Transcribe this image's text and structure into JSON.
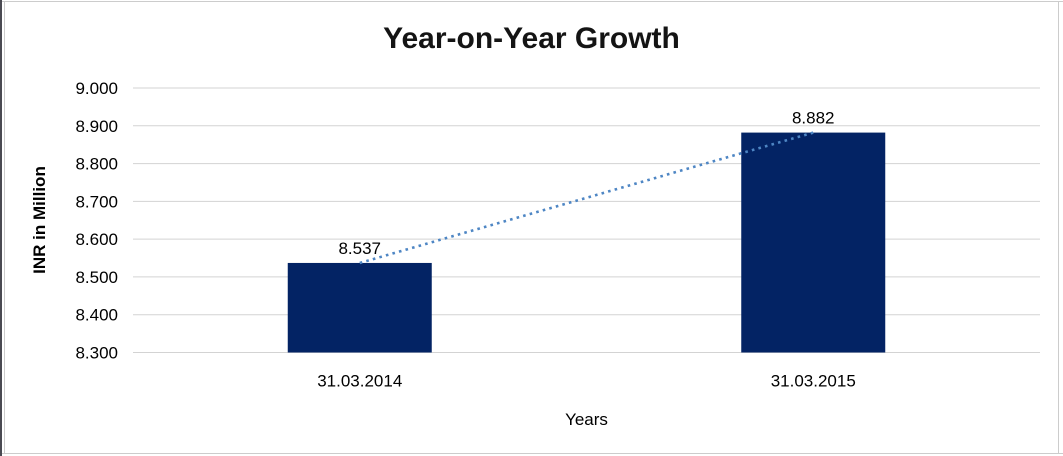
{
  "chart_data": {
    "type": "bar",
    "title": "Year-on-Year Growth",
    "xlabel": "Years",
    "ylabel": "INR in Million",
    "categories": [
      "31.03.2014",
      "31.03.2015"
    ],
    "values": [
      8.537,
      8.882
    ],
    "value_labels": [
      "8.537",
      "8.882"
    ],
    "y_tick_labels": [
      "9.000",
      "8.900",
      "8.800",
      "8.700",
      "8.600",
      "8.500",
      "8.400",
      "8.300"
    ],
    "ylim": [
      8.3,
      9.0
    ],
    "grid": true,
    "legend_position": "none",
    "bar_color": "#032364",
    "gridline_color": "#d3d3d3",
    "text_color": "#000000",
    "trendline": {
      "style": "dotted",
      "color": "#4e86c4",
      "from_value": 8.537,
      "to_value": 8.882
    }
  }
}
